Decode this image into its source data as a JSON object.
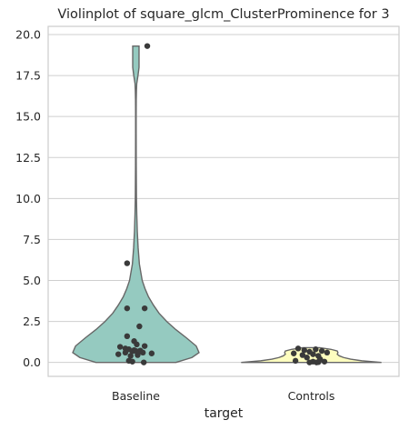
{
  "chart_data": {
    "type": "violin",
    "title": "Violinplot of square_glcm_ClusterProminence for 3",
    "xlabel": "target",
    "ylabel": "",
    "ylim": [
      -0.85,
      20.5
    ],
    "yticks": [
      0.0,
      2.5,
      5.0,
      7.5,
      10.0,
      12.5,
      15.0,
      17.5,
      20.0
    ],
    "ytick_labels": [
      "0.0",
      "2.5",
      "5.0",
      "7.5",
      "10.0",
      "12.5",
      "15.0",
      "17.5",
      "20.0"
    ],
    "grid": true,
    "categories": [
      "Baseline",
      "Controls"
    ],
    "colors": [
      "#95cac0",
      "#fdfdbf"
    ],
    "series": [
      {
        "category": "Baseline",
        "color": "#95cac0",
        "density": [
          [
            0.0,
            0.57
          ],
          [
            0.3,
            0.8
          ],
          [
            0.6,
            0.9
          ],
          [
            1.0,
            0.86
          ],
          [
            1.5,
            0.72
          ],
          [
            2.0,
            0.57
          ],
          [
            2.5,
            0.44
          ],
          [
            3.0,
            0.33
          ],
          [
            3.5,
            0.25
          ],
          [
            4.0,
            0.18
          ],
          [
            4.5,
            0.13
          ],
          [
            5.0,
            0.09
          ],
          [
            6.0,
            0.05
          ],
          [
            7.0,
            0.032
          ],
          [
            8.0,
            0.02
          ],
          [
            9.0,
            0.013
          ],
          [
            10.0,
            0.008
          ],
          [
            12.0,
            0.005
          ],
          [
            14.0,
            0.004
          ],
          [
            15.0,
            0.004
          ],
          [
            16.0,
            0.005
          ],
          [
            16.6,
            0.008
          ],
          [
            17.0,
            0.012
          ],
          [
            17.5,
            0.03
          ],
          [
            18.0,
            0.045
          ],
          [
            19.3,
            0.045
          ]
        ],
        "points": [
          [
            19.3,
            0.13
          ],
          [
            6.05,
            -0.1
          ],
          [
            3.3,
            -0.1
          ],
          [
            3.3,
            0.1
          ],
          [
            2.2,
            0.04
          ],
          [
            1.6,
            -0.1
          ],
          [
            1.3,
            -0.02
          ],
          [
            1.1,
            0.01
          ],
          [
            1.0,
            0.1
          ],
          [
            0.95,
            -0.18
          ],
          [
            0.85,
            -0.12
          ],
          [
            0.8,
            -0.08
          ],
          [
            0.75,
            -0.02
          ],
          [
            0.72,
            0.05
          ],
          [
            0.7,
            0.0
          ],
          [
            0.68,
            -0.04
          ],
          [
            0.65,
            0.03
          ],
          [
            0.6,
            -0.12
          ],
          [
            0.6,
            0.08
          ],
          [
            0.55,
            0.18
          ],
          [
            0.5,
            -0.2
          ],
          [
            0.45,
            0.02
          ],
          [
            0.4,
            -0.06
          ],
          [
            0.1,
            -0.08
          ],
          [
            0.05,
            -0.04
          ],
          [
            0.0,
            0.09
          ]
        ]
      },
      {
        "category": "Controls",
        "color": "#fdfdbf",
        "density": [
          [
            0.0,
            1.0
          ],
          [
            0.1,
            0.72
          ],
          [
            0.2,
            0.56
          ],
          [
            0.3,
            0.46
          ],
          [
            0.4,
            0.4
          ],
          [
            0.5,
            0.37
          ],
          [
            0.6,
            0.38
          ],
          [
            0.7,
            0.37
          ],
          [
            0.8,
            0.28
          ],
          [
            0.9,
            0.12
          ]
        ],
        "points": [
          [
            0.85,
            -0.15
          ],
          [
            0.8,
            0.05
          ],
          [
            0.75,
            -0.08
          ],
          [
            0.7,
            0.12
          ],
          [
            0.65,
            -0.02
          ],
          [
            0.6,
            0.18
          ],
          [
            0.55,
            -0.2
          ],
          [
            0.5,
            0.02
          ],
          [
            0.45,
            -0.1
          ],
          [
            0.4,
            0.08
          ],
          [
            0.3,
            -0.05
          ],
          [
            0.2,
            0.1
          ],
          [
            0.1,
            -0.18
          ],
          [
            0.05,
            0.02
          ],
          [
            0.05,
            0.15
          ],
          [
            0.02,
            0.08
          ],
          [
            0.0,
            -0.02
          ],
          [
            0.0,
            0.06
          ]
        ]
      }
    ]
  }
}
